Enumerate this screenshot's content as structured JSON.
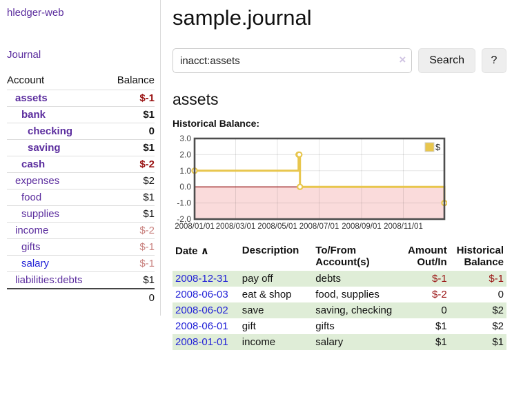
{
  "colors": {
    "link_purple": "#5b2d9e",
    "link_blue": "#2323d7",
    "negative_strong": "#991111",
    "negative_faded": "#c9827f",
    "row_stripe_green": "#dfedd7",
    "chart_line_gold": "#e8c64d",
    "chart_negative_fill": "#fadbdb",
    "chart_zero_line": "#8b0000",
    "chart_border": "#4d4d4d"
  },
  "sidebar": {
    "brand": "hledger-web",
    "journal_link": "Journal",
    "table": {
      "headers": {
        "account": "Account",
        "balance": "Balance"
      },
      "accounts": [
        {
          "name": "assets",
          "depth": 1,
          "bold": true,
          "balance": "$-1",
          "neg": "strong",
          "link": "purple"
        },
        {
          "name": "bank",
          "depth": 2,
          "bold": true,
          "balance": "$1",
          "neg": "none",
          "link": "purple"
        },
        {
          "name": "checking",
          "depth": 3,
          "bold": true,
          "balance": "0",
          "neg": "none",
          "link": "purple"
        },
        {
          "name": "saving",
          "depth": 3,
          "bold": true,
          "balance": "$1",
          "neg": "none",
          "link": "purple"
        },
        {
          "name": "cash",
          "depth": 2,
          "bold": true,
          "balance": "$-2",
          "neg": "strong",
          "link": "purple"
        },
        {
          "name": "expenses",
          "depth": 1,
          "bold": false,
          "balance": "$2",
          "neg": "none",
          "link": "purple"
        },
        {
          "name": "food",
          "depth": 2,
          "bold": false,
          "balance": "$1",
          "neg": "none",
          "link": "purple"
        },
        {
          "name": "supplies",
          "depth": 2,
          "bold": false,
          "balance": "$1",
          "neg": "none",
          "link": "purple"
        },
        {
          "name": "income",
          "depth": 1,
          "bold": false,
          "balance": "$-2",
          "neg": "faded",
          "link": "purple"
        },
        {
          "name": "gifts",
          "depth": 2,
          "bold": false,
          "balance": "$-1",
          "neg": "faded",
          "link": "purple"
        },
        {
          "name": "salary",
          "depth": 2,
          "bold": false,
          "balance": "$-1",
          "neg": "faded",
          "link": "blue"
        },
        {
          "name": "liabilities:debts",
          "depth": 1,
          "bold": false,
          "balance": "$1",
          "neg": "none",
          "link": "purple"
        }
      ],
      "total": "0"
    }
  },
  "main": {
    "title": "sample.journal",
    "search": {
      "query": "inacct:assets",
      "clear_icon": "×",
      "search_button": "Search",
      "help_button": "?"
    },
    "account_heading": "assets",
    "chart_label": "Historical Balance:"
  },
  "chart_data": {
    "type": "line",
    "step": true,
    "title": "Historical Balance:",
    "xlabel": "",
    "ylabel": "",
    "x_range": [
      "2008-01-01",
      "2008-12-31"
    ],
    "ylim": [
      -2,
      3
    ],
    "yticks": [
      3,
      2,
      1,
      0,
      -1,
      -2
    ],
    "ytick_labels": [
      "3.0",
      "2.0",
      "1.0",
      "0.0",
      "-1.0",
      "-2.0"
    ],
    "xticks": [
      {
        "date": "2008-01-01",
        "label": "2008/01/01"
      },
      {
        "date": "2008-03-01",
        "label": "2008/03/01"
      },
      {
        "date": "2008-05-01",
        "label": "2008/05/01"
      },
      {
        "date": "2008-07-01",
        "label": "2008/07/01"
      },
      {
        "date": "2008-09-01",
        "label": "2008/09/01"
      },
      {
        "date": "2008-11-01",
        "label": "2008/11/01"
      }
    ],
    "series": [
      {
        "name": "$",
        "points": [
          [
            "2008-01-01",
            1
          ],
          [
            "2008-06-01",
            2
          ],
          [
            "2008-06-02",
            2
          ],
          [
            "2008-06-03",
            0
          ],
          [
            "2008-12-31",
            -1
          ]
        ]
      }
    ],
    "legend_position": "top-right",
    "grid": true,
    "negative_region_shaded": true
  },
  "register": {
    "headers": {
      "date": "Date",
      "sort_icon": "∧",
      "description": "Description",
      "accounts": "To/From Account(s)",
      "amount": "Amount Out/In",
      "balance": "Historical Balance"
    },
    "rows": [
      {
        "date": "2008-12-31",
        "description": "pay off",
        "accounts": "debts",
        "amount": "$-1",
        "amount_neg": true,
        "balance": "$-1",
        "balance_neg": true
      },
      {
        "date": "2008-06-03",
        "description": "eat & shop",
        "accounts": "food, supplies",
        "amount": "$-2",
        "amount_neg": true,
        "balance": "0",
        "balance_neg": false
      },
      {
        "date": "2008-06-02",
        "description": "save",
        "accounts": "saving, checking",
        "amount": "0",
        "amount_neg": false,
        "balance": "$2",
        "balance_neg": false
      },
      {
        "date": "2008-06-01",
        "description": "gift",
        "accounts": "gifts",
        "amount": "$1",
        "amount_neg": false,
        "balance": "$2",
        "balance_neg": false
      },
      {
        "date": "2008-01-01",
        "description": "income",
        "accounts": "salary",
        "amount": "$1",
        "amount_neg": false,
        "balance": "$1",
        "balance_neg": false
      }
    ]
  }
}
